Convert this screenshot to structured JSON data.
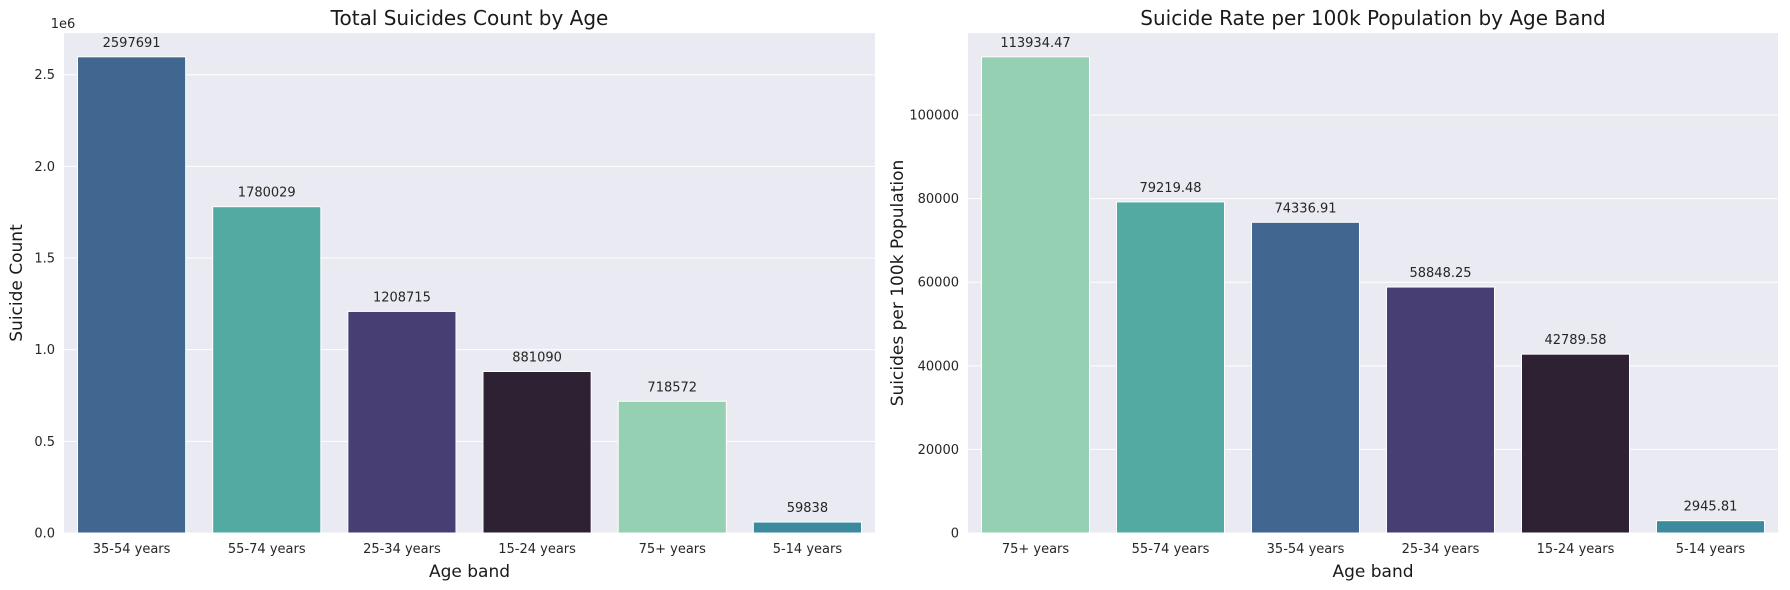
{
  "chart_data": [
    {
      "type": "bar",
      "title": "Total Suicides Count by Age",
      "xlabel": "Age band",
      "ylabel": "Suicide Count",
      "y_offset_label": "1e6",
      "categories": [
        "35-54 years",
        "55-74 years",
        "25-34 years",
        "15-24 years",
        "75+ years",
        "5-14 years"
      ],
      "values": [
        2597691,
        1780029,
        1208715,
        881090,
        718572,
        59838
      ],
      "value_labels": [
        "2597691",
        "1780029",
        "1208715",
        "881090",
        "718572",
        "59838"
      ],
      "colors": [
        "#41668f",
        "#52aaa3",
        "#473f73",
        "#2e2133",
        "#96d0b2",
        "#3b8a9e"
      ],
      "ylim": [
        0,
        2727575
      ],
      "yticks": [
        0,
        500000,
        1000000,
        1500000,
        2000000,
        2500000
      ],
      "ytick_labels": [
        "0.0",
        "0.5",
        "1.0",
        "1.5",
        "2.0",
        "2.5"
      ],
      "grid": true,
      "legend": "none"
    },
    {
      "type": "bar",
      "title": "Suicide Rate per 100k Population by Age Band",
      "xlabel": "Age band",
      "ylabel": "Suicides per 100k Population",
      "categories": [
        "75+ years",
        "55-74 years",
        "35-54 years",
        "25-34 years",
        "15-24 years",
        "5-14 years"
      ],
      "values": [
        113934.47,
        79219.48,
        74336.91,
        58848.25,
        42789.58,
        2945.81
      ],
      "value_labels": [
        "113934.47",
        "79219.48",
        "74336.91",
        "58848.25",
        "42789.58",
        "2945.81"
      ],
      "colors": [
        "#96d0b2",
        "#52aaa3",
        "#41668f",
        "#473f73",
        "#2e2133",
        "#3b8a9e"
      ],
      "ylim": [
        0,
        119631
      ],
      "yticks": [
        0,
        20000,
        40000,
        60000,
        80000,
        100000
      ],
      "ytick_labels": [
        "0",
        "20000",
        "40000",
        "60000",
        "80000",
        "100000"
      ],
      "grid": true,
      "legend": "none"
    }
  ],
  "colors": {
    "plot_background": "#eaeaf2",
    "grid": "#ffffff",
    "figure_background": "#ffffff"
  }
}
